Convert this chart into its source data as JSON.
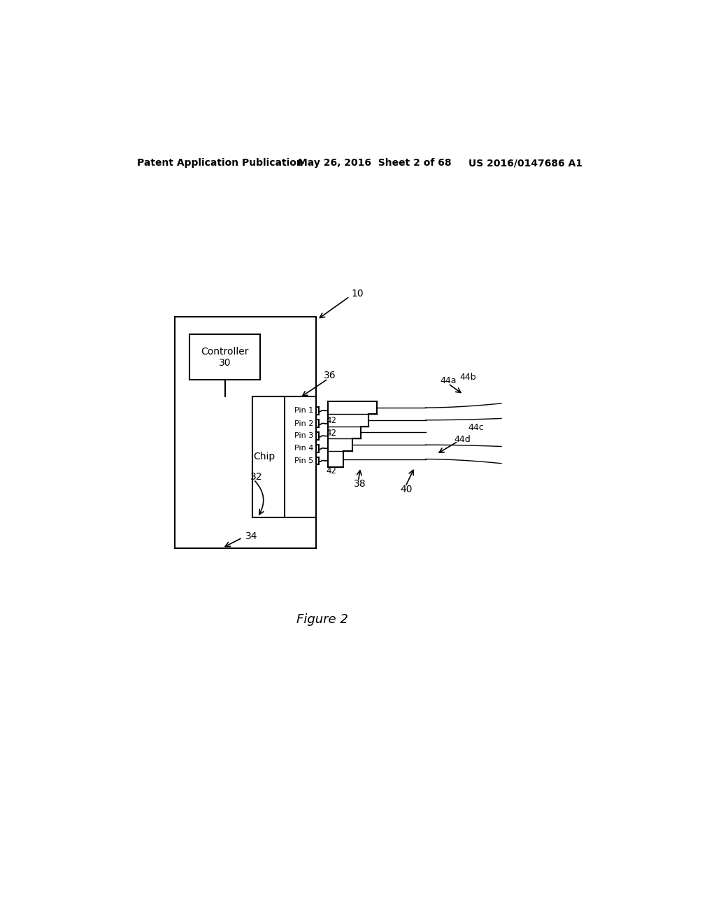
{
  "bg_color": "#ffffff",
  "header_left": "Patent Application Publication",
  "header_mid": "May 26, 2016  Sheet 2 of 68",
  "header_right": "US 2016/0147686 A1",
  "figure_label": "Figure 2",
  "pin_labels": [
    "Pin 1",
    "Pin 2",
    "Pin 3",
    "Pin 4",
    "Pin 5"
  ],
  "label_10": "10",
  "label_32": "32",
  "label_34": "34",
  "label_36": "36",
  "label_38": "38",
  "label_40": "40",
  "label_42": "42",
  "label_44a": "44a",
  "label_44b": "44b",
  "label_44c": "44c",
  "label_44d": "44d",
  "label_chip": "Chip",
  "label_controller": "Controller\n30"
}
